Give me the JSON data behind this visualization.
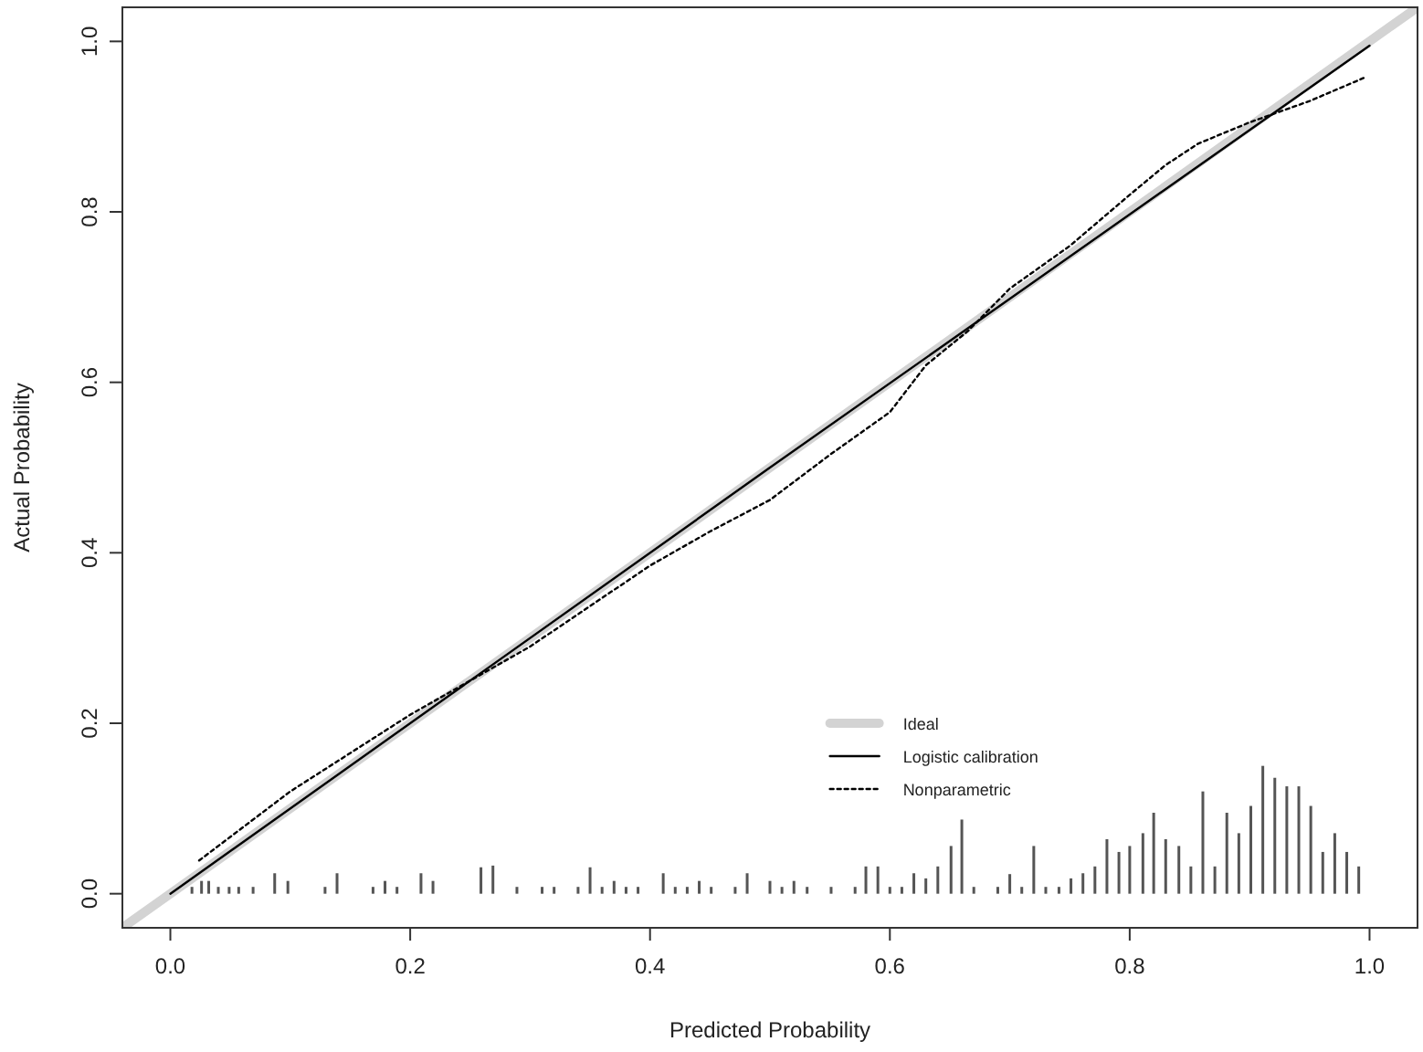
{
  "chart_data": {
    "type": "line",
    "xlabel": "Predicted Probability",
    "ylabel": "Actual Probability",
    "xlim": [
      -0.04,
      1.04
    ],
    "ylim": [
      -0.04,
      1.04
    ],
    "xticks": [
      {
        "value": 0,
        "label": "0.0"
      },
      0.2,
      0.4,
      0.6,
      0.8,
      {
        "value": 1,
        "label": "1.0"
      }
    ],
    "yticks": [
      {
        "value": 0,
        "label": "0.0"
      },
      0.2,
      0.4,
      0.6,
      0.8,
      {
        "value": 1,
        "label": "1.0"
      }
    ],
    "grid": false,
    "legend": "bottom right",
    "series": [
      {
        "name": "Ideal",
        "color": "#d3d3d3",
        "line_style": "solid",
        "x": [
          -0.04,
          1.04
        ],
        "values": [
          -0.04,
          1.04
        ]
      },
      {
        "name": "Logistic calibration",
        "color": "#000000",
        "line_style": "solid",
        "x": [
          0,
          0.5,
          1
        ],
        "values": [
          0,
          0.5,
          0.995
        ]
      },
      {
        "name": "Nonparametric",
        "color": "#000000",
        "line_style": "dotted",
        "x": [
          0.024,
          0.1,
          0.2,
          0.3,
          0.4,
          0.45,
          0.5,
          0.55,
          0.6,
          0.63,
          0.665,
          0.7,
          0.75,
          0.8,
          0.83,
          0.857,
          0.9,
          0.95,
          0.995
        ],
        "values": [
          0.039,
          0.12,
          0.21,
          0.29,
          0.385,
          0.425,
          0.462,
          0.515,
          0.565,
          0.62,
          0.66,
          0.71,
          0.76,
          0.82,
          0.855,
          0.88,
          0.905,
          0.93,
          0.957
        ]
      },
      {
        "type": "bar",
        "color": "#555555",
        "x": [
          0.018,
          0.026,
          0.032,
          0.04,
          0.049,
          0.057,
          0.069,
          0.087,
          0.098,
          0.129,
          0.139,
          0.169,
          0.179,
          0.189,
          0.209,
          0.219,
          0.259,
          0.269,
          0.289,
          0.31,
          0.32,
          0.34,
          0.35,
          0.36,
          0.37,
          0.38,
          0.39,
          0.411,
          0.421,
          0.431,
          0.441,
          0.451,
          0.471,
          0.481,
          0.5,
          0.51,
          0.52,
          0.531,
          0.551,
          0.571,
          0.58,
          0.59,
          0.6,
          0.61,
          0.62,
          0.63,
          0.64,
          0.651,
          0.66,
          0.67,
          0.69,
          0.7,
          0.71,
          0.72,
          0.73,
          0.741,
          0.751,
          0.761,
          0.771,
          0.781,
          0.791,
          0.8,
          0.811,
          0.82,
          0.83,
          0.841,
          0.851,
          0.861,
          0.871,
          0.881,
          0.891,
          0.901,
          0.911,
          0.921,
          0.931,
          0.941,
          0.951,
          0.961,
          0.971,
          0.981,
          0.991
        ],
        "values": [
          0.008,
          0.015,
          0.015,
          0.008,
          0.008,
          0.008,
          0.008,
          0.024,
          0.015,
          0.008,
          0.024,
          0.008,
          0.015,
          0.008,
          0.024,
          0.015,
          0.031,
          0.033,
          0.008,
          0.008,
          0.008,
          0.008,
          0.031,
          0.008,
          0.015,
          0.008,
          0.008,
          0.024,
          0.008,
          0.008,
          0.015,
          0.008,
          0.008,
          0.024,
          0.015,
          0.008,
          0.015,
          0.008,
          0.008,
          0.008,
          0.032,
          0.032,
          0.008,
          0.008,
          0.024,
          0.018,
          0.032,
          0.056,
          0.087,
          0.008,
          0.008,
          0.023,
          0.008,
          0.056,
          0.008,
          0.008,
          0.018,
          0.024,
          0.032,
          0.064,
          0.049,
          0.056,
          0.071,
          0.095,
          0.064,
          0.056,
          0.032,
          0.12,
          0.032,
          0.095,
          0.071,
          0.103,
          0.15,
          0.136,
          0.126,
          0.126,
          0.103,
          0.049,
          0.071,
          0.049,
          0.032
        ]
      }
    ]
  }
}
